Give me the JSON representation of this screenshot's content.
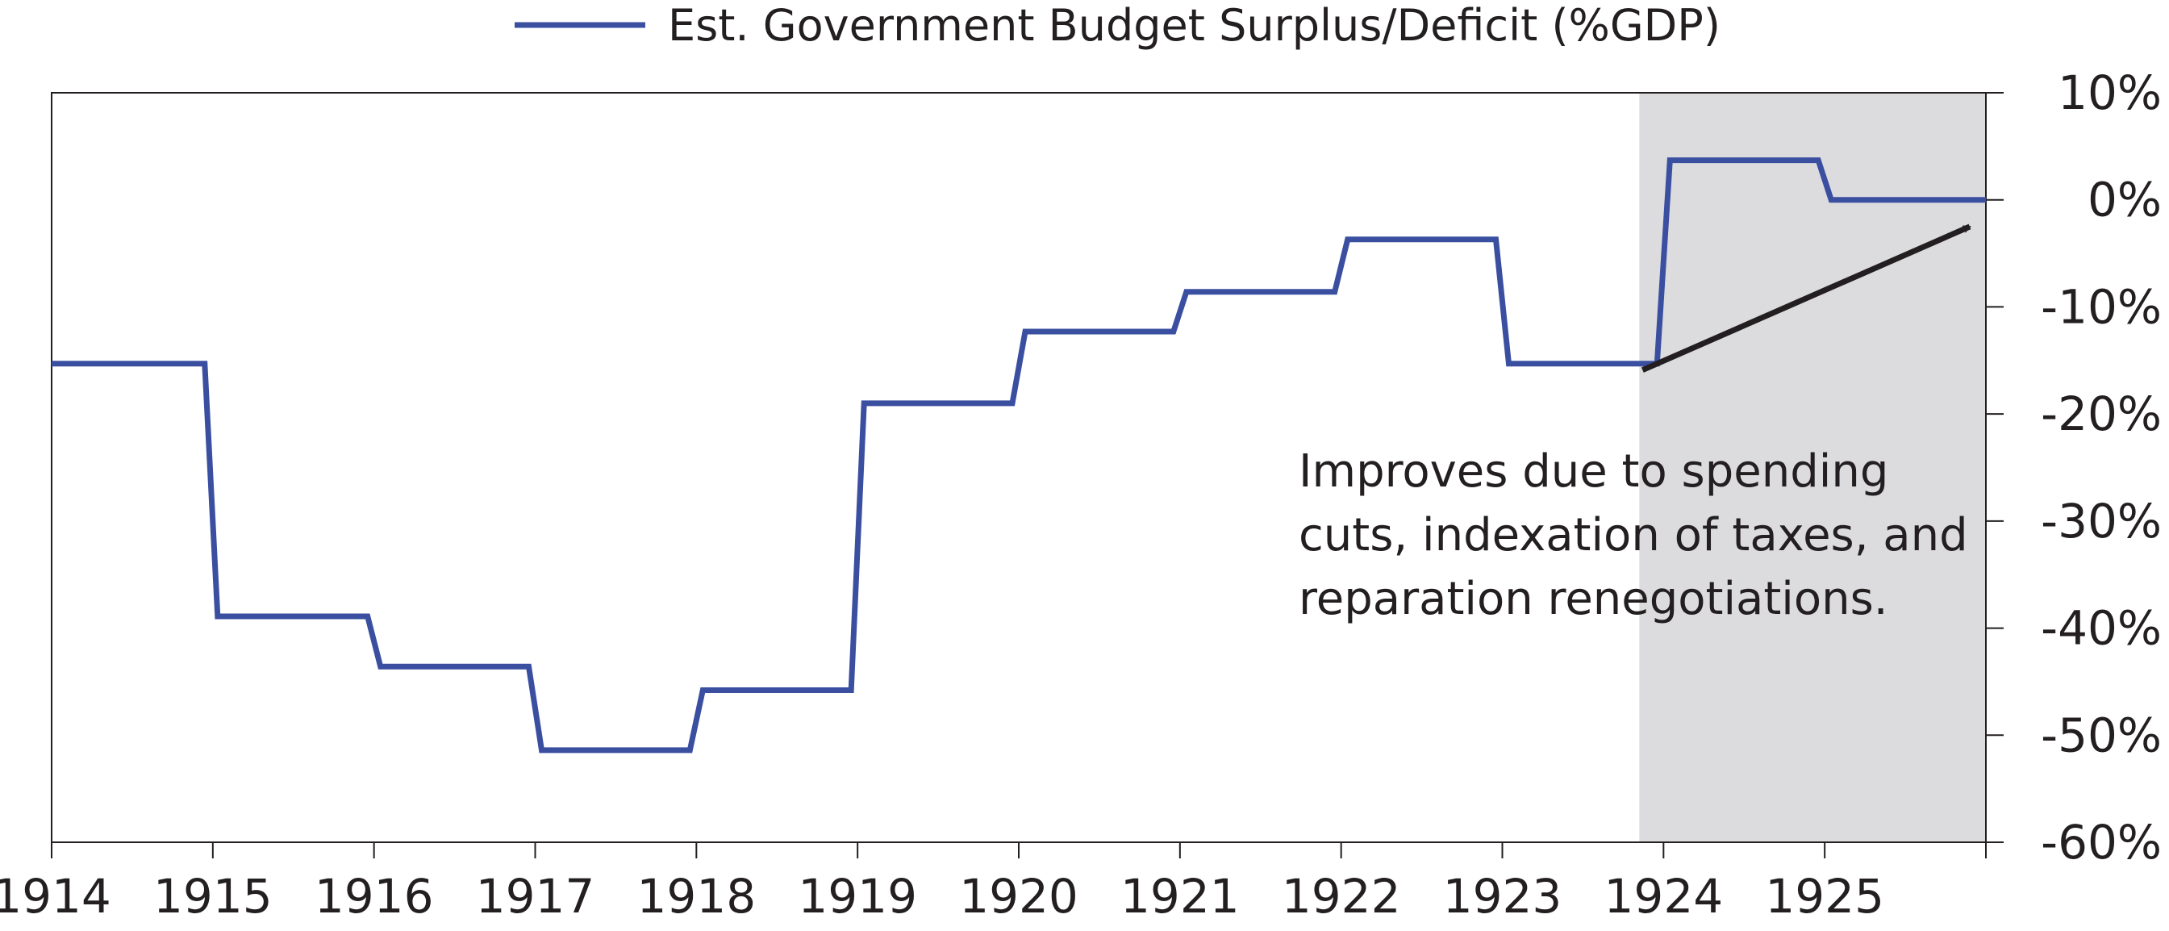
{
  "chart_data": {
    "type": "line",
    "title": "",
    "xlabel": "",
    "ylabel": "",
    "x_tick_labels": [
      "1914",
      "1915",
      "1916",
      "1917",
      "1918",
      "1919",
      "1920",
      "1921",
      "1922",
      "1923",
      "1924",
      "1925"
    ],
    "y_tick_labels": [
      "10%",
      "0%",
      "-10%",
      "-20%",
      "-30%",
      "-40%",
      "-50%",
      "-60%"
    ],
    "y_tick_values": [
      10,
      0,
      -10,
      -20,
      -30,
      -40,
      -50,
      -60
    ],
    "xlim": [
      1914,
      1926
    ],
    "ylim": [
      -60,
      10
    ],
    "y_axis_side": "right",
    "legend_position": "top-center",
    "grid": false,
    "series": [
      {
        "name": "Est. Government Budget Surplus/Deficit (%GDP)",
        "color": "#3a4fa0",
        "x": [
          1914.0,
          1914.95,
          1915.03,
          1915.96,
          1916.04,
          1916.96,
          1917.04,
          1917.96,
          1918.04,
          1918.96,
          1919.04,
          1919.96,
          1920.04,
          1920.96,
          1921.04,
          1921.96,
          1922.04,
          1922.96,
          1923.04,
          1923.96,
          1924.04,
          1924.96,
          1925.04,
          1926.0
        ],
        "y": [
          -15.3,
          -15.3,
          -38.9,
          -38.9,
          -43.6,
          -43.6,
          -51.4,
          -51.4,
          -45.8,
          -45.8,
          -19.0,
          -19.0,
          -12.3,
          -12.3,
          -8.6,
          -8.6,
          -3.7,
          -3.7,
          -15.3,
          -15.3,
          3.7,
          3.7,
          0.0,
          0.0
        ]
      }
    ],
    "shaded_region": {
      "x_start": 1923.85,
      "x_end": 1926.0,
      "color": "#dcdcde"
    },
    "annotation": {
      "lines": [
        "Improves due to spending",
        "cuts, indexation of taxes, and",
        "reparation renegotiations."
      ],
      "arrow_from": [
        1923.87,
        -15.9
      ],
      "arrow_to": [
        1925.9,
        -2.5
      ],
      "arrow_color": "#231f20"
    }
  }
}
